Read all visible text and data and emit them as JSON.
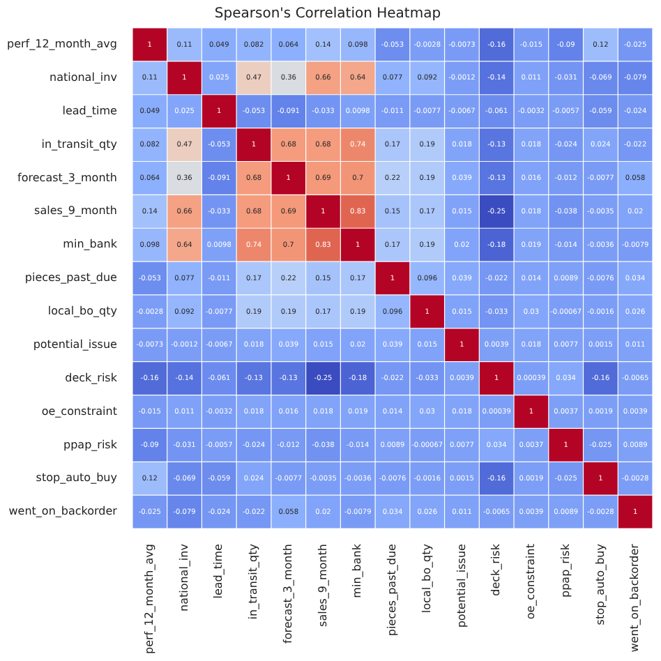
{
  "chart_data": {
    "type": "heatmap",
    "title": "Spearson's Correlation Heatmap",
    "categories": [
      "perf_12_month_avg",
      "national_inv",
      "lead_time",
      "in_transit_qty",
      "forecast_3_month",
      "sales_9_month",
      "min_bank",
      "pieces_past_due",
      "local_bo_qty",
      "potential_issue",
      "deck_risk",
      "oe_constraint",
      "ppap_risk",
      "stop_auto_buy",
      "went_on_backorder"
    ],
    "y_categories": [
      "perf_12_month_avg",
      "national_inv",
      "lead_time",
      "in_transit_qty",
      "forecast_3_month",
      "sales_9_month",
      "min_bank",
      "pieces_past_due",
      "local_bo_qty",
      "potential_issue",
      "deck_risk",
      "oe_constraint",
      "ppap_risk",
      "stop_auto_buy",
      "went_on_backorder"
    ],
    "cells": [
      [
        1,
        0.11,
        0.049,
        0.082,
        0.064,
        0.14,
        0.098,
        -0.053,
        -0.0028,
        -0.0073,
        -0.16,
        -0.015,
        -0.09,
        0.12,
        -0.025
      ],
      [
        0.11,
        1,
        0.025,
        0.47,
        0.36,
        0.66,
        0.64,
        0.077,
        0.092,
        -0.0012,
        -0.14,
        0.011,
        -0.031,
        -0.069,
        -0.079
      ],
      [
        0.049,
        0.025,
        1,
        -0.053,
        -0.091,
        -0.033,
        0.0098,
        -0.011,
        -0.0077,
        -0.0067,
        -0.061,
        -0.0032,
        -0.0057,
        -0.059,
        -0.024
      ],
      [
        0.082,
        0.47,
        -0.053,
        1,
        0.68,
        0.68,
        0.74,
        0.17,
        0.19,
        0.018,
        -0.13,
        0.018,
        -0.024,
        0.024,
        -0.022
      ],
      [
        0.064,
        0.36,
        -0.091,
        0.68,
        1,
        0.69,
        0.7,
        0.22,
        0.19,
        0.039,
        -0.13,
        0.016,
        -0.012,
        -0.0077,
        0.058
      ],
      [
        0.14,
        0.66,
        -0.033,
        0.68,
        0.69,
        1,
        0.83,
        0.15,
        0.17,
        0.015,
        -0.25,
        0.018,
        -0.038,
        -0.0035,
        0.02
      ],
      [
        0.098,
        0.64,
        0.0098,
        0.74,
        0.7,
        0.83,
        1,
        0.17,
        0.19,
        0.02,
        -0.18,
        0.019,
        -0.014,
        -0.0036,
        -0.0079
      ],
      [
        -0.053,
        0.077,
        -0.011,
        0.17,
        0.22,
        0.15,
        0.17,
        1,
        0.096,
        0.039,
        -0.022,
        0.014,
        0.0089,
        -0.0076,
        0.034
      ],
      [
        -0.0028,
        0.092,
        -0.0077,
        0.19,
        0.19,
        0.17,
        0.19,
        0.096,
        1,
        0.015,
        -0.033,
        0.03,
        -0.00067,
        -0.0016,
        0.026
      ],
      [
        -0.0073,
        -0.0012,
        -0.0067,
        0.018,
        0.039,
        0.015,
        0.02,
        0.039,
        0.015,
        1,
        0.0039,
        0.018,
        0.0077,
        0.0015,
        0.011
      ],
      [
        -0.16,
        -0.14,
        -0.061,
        -0.13,
        -0.13,
        -0.25,
        -0.18,
        -0.022,
        -0.033,
        0.0039,
        1,
        0.00039,
        0.034,
        -0.16,
        -0.0065
      ],
      [
        -0.015,
        0.011,
        -0.0032,
        0.018,
        0.016,
        0.018,
        0.019,
        0.014,
        0.03,
        0.018,
        0.00039,
        1,
        0.0037,
        0.0019,
        0.0039
      ],
      [
        -0.09,
        -0.031,
        -0.0057,
        -0.024,
        -0.012,
        -0.038,
        -0.014,
        0.0089,
        -0.00067,
        0.0077,
        0.034,
        0.0037,
        1,
        -0.025,
        0.0089
      ],
      [
        0.12,
        -0.069,
        -0.059,
        0.024,
        -0.0077,
        -0.0035,
        -0.0036,
        -0.0076,
        -0.0016,
        0.0015,
        -0.16,
        0.0019,
        -0.025,
        1,
        -0.0028
      ],
      [
        -0.025,
        -0.079,
        -0.024,
        -0.022,
        0.058,
        0.02,
        -0.0079,
        0.034,
        0.026,
        0.011,
        -0.0065,
        0.0039,
        0.0089,
        -0.0028,
        1
      ]
    ],
    "data_labels": true
  }
}
